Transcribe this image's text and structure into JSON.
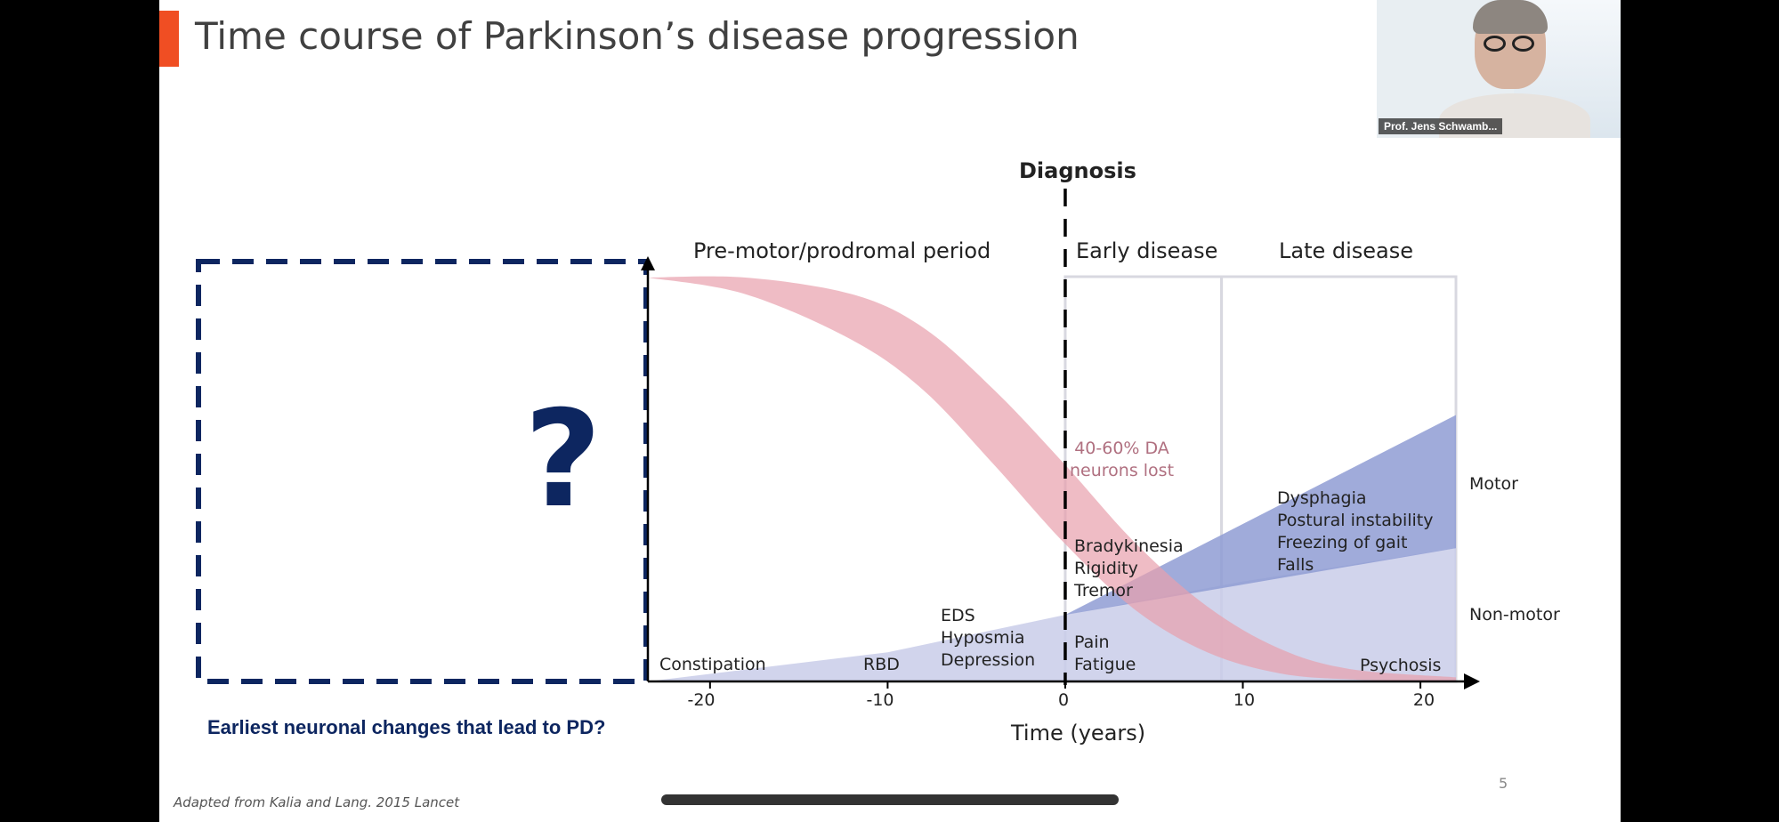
{
  "slide": {
    "title": "Time course of Parkinson’s disease progression",
    "page_number": "5",
    "footnote": "Adapted from Kalia and Lang. 2015 Lancet",
    "accent_color": "#f04e23"
  },
  "webcam": {
    "caption": "Prof. Jens Schwamb..."
  },
  "unknown_box": {
    "symbol": "?",
    "caption": "Earliest neuronal changes that lead to PD?",
    "color": "#0d2660"
  },
  "chart_data": {
    "type": "area",
    "xlabel": "Time (years)",
    "xlim": [
      -23.5,
      22
    ],
    "x_ticks": [
      -20,
      -10,
      0,
      10,
      20
    ],
    "x_tick_labels": [
      "-20",
      "-10",
      "0",
      "10",
      "20"
    ],
    "diagnosis_x": 0,
    "diagnosis_label": "Diagnosis",
    "phase_boundaries": [
      0,
      8.8,
      22
    ],
    "periods": [
      {
        "label": "Pre-motor/prodromal period"
      },
      {
        "label": "Early disease"
      },
      {
        "label": "Late disease"
      }
    ],
    "series": [
      {
        "name": "Non-motor",
        "color": "#c9cde9",
        "x": [
          -23.5,
          -10,
          0,
          10,
          22
        ],
        "lower": [
          0,
          0,
          0,
          0,
          0
        ],
        "upper": [
          0,
          0.07,
          0.16,
          0.24,
          0.32
        ]
      },
      {
        "name": "Motor",
        "color": "#8f9cd4",
        "x": [
          0,
          22
        ],
        "lower": [
          0.16,
          0.32
        ],
        "upper": [
          0.16,
          0.64
        ]
      },
      {
        "name": "",
        "color": "#e8a0ad",
        "x": [
          -23.5,
          -18,
          -12,
          -8,
          -4,
          0,
          4,
          8,
          12,
          16,
          22
        ],
        "lower": [
          0.97,
          0.93,
          0.82,
          0.7,
          0.52,
          0.33,
          0.17,
          0.07,
          0.02,
          0.005,
          0
        ],
        "upper": [
          0.97,
          0.97,
          0.93,
          0.85,
          0.7,
          0.52,
          0.33,
          0.18,
          0.08,
          0.03,
          0.01
        ]
      }
    ],
    "annotations": [
      {
        "text": "40-60% DA\nneurons lost",
        "color": "pink"
      },
      {
        "text": "Bradykinesia\nRigidity\nTremor"
      },
      {
        "text": "Dysphagia\nPostural instability\nFreezing of gait\nFalls"
      },
      {
        "text": "EDS\nHyposmia\nDepression"
      },
      {
        "text": "Pain\nFatigue"
      },
      {
        "text": "Constipation"
      },
      {
        "text": "RBD"
      },
      {
        "text": "Psychosis"
      }
    ]
  }
}
